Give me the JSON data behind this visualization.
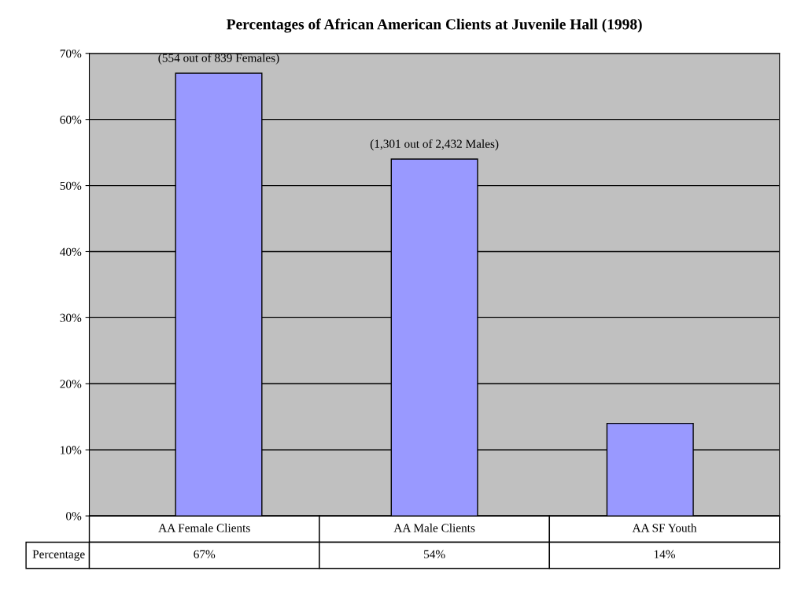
{
  "chart_data": {
    "type": "bar",
    "title": "Percentages of African American Clients at Juvenile Hall (1998)",
    "categories": [
      "AA Female Clients",
      "AA Male Clients",
      "AA SF Youth"
    ],
    "series": [
      {
        "name": "Percentage",
        "color": "#9999ff",
        "values": [
          67,
          54,
          14
        ],
        "value_labels": [
          "67%",
          "54%",
          "14%"
        ]
      }
    ],
    "ylim": [
      0,
      70
    ],
    "yticks": [
      {
        "value": 0,
        "label": "0%"
      },
      {
        "value": 10,
        "label": "10%"
      },
      {
        "value": 20,
        "label": "20%"
      },
      {
        "value": 30,
        "label": "30%"
      },
      {
        "value": 40,
        "label": "40%"
      },
      {
        "value": 50,
        "label": "50%"
      },
      {
        "value": 60,
        "label": "60%"
      },
      {
        "value": 70,
        "label": "70%"
      }
    ],
    "grid": "y",
    "legend": false,
    "annotations": [
      {
        "text": "(554 out of 839 Females)",
        "x": "AA Female Clients",
        "y": 67
      },
      {
        "text": "(1,301 out of 2,432 Males)",
        "x": "AA Male Clients",
        "y": 54
      }
    ]
  }
}
